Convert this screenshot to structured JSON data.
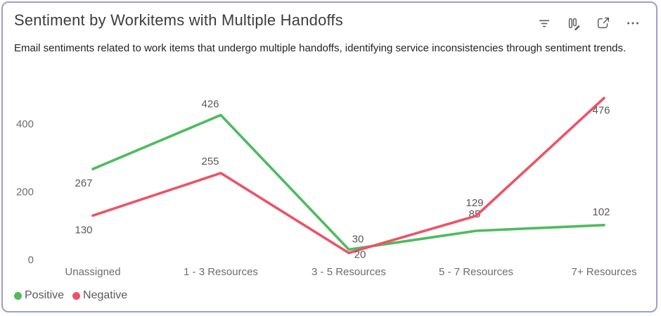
{
  "card": {
    "title": "Sentiment by Workitems with Multiple Handoffs",
    "subtitle": "Email sentiments related to work items that undergo multiple handoffs, identifying service inconsistencies through sentiment trends.",
    "border_color": "#9d9dd9",
    "toolbar": {
      "icons": [
        "filter-icon",
        "personalize-visual-icon",
        "focus-mode-icon",
        "more-options-icon"
      ]
    }
  },
  "chart_data": {
    "type": "line",
    "title": "Sentiment by Workitems with Multiple Handoffs",
    "categories": [
      "Unassigned",
      "1 - 3 Resources",
      "3 - 5 Resources",
      "5 - 7 Resources",
      "7+ Resources"
    ],
    "series": [
      {
        "name": "Positive",
        "color": "#4ebb5f",
        "values": [
          267,
          426,
          30,
          85,
          102
        ]
      },
      {
        "name": "Negative",
        "color": "#ec5366",
        "values": [
          130,
          255,
          20,
          129,
          476
        ]
      }
    ],
    "yticks": [
      0,
      200,
      400
    ],
    "ylim": [
      0,
      500
    ],
    "xlabel": "",
    "ylabel": "",
    "grid": false,
    "data_labels": true,
    "legend_position": "bottom-left",
    "label_color": "#595959",
    "axis_label_color": "#6d6d6d"
  }
}
